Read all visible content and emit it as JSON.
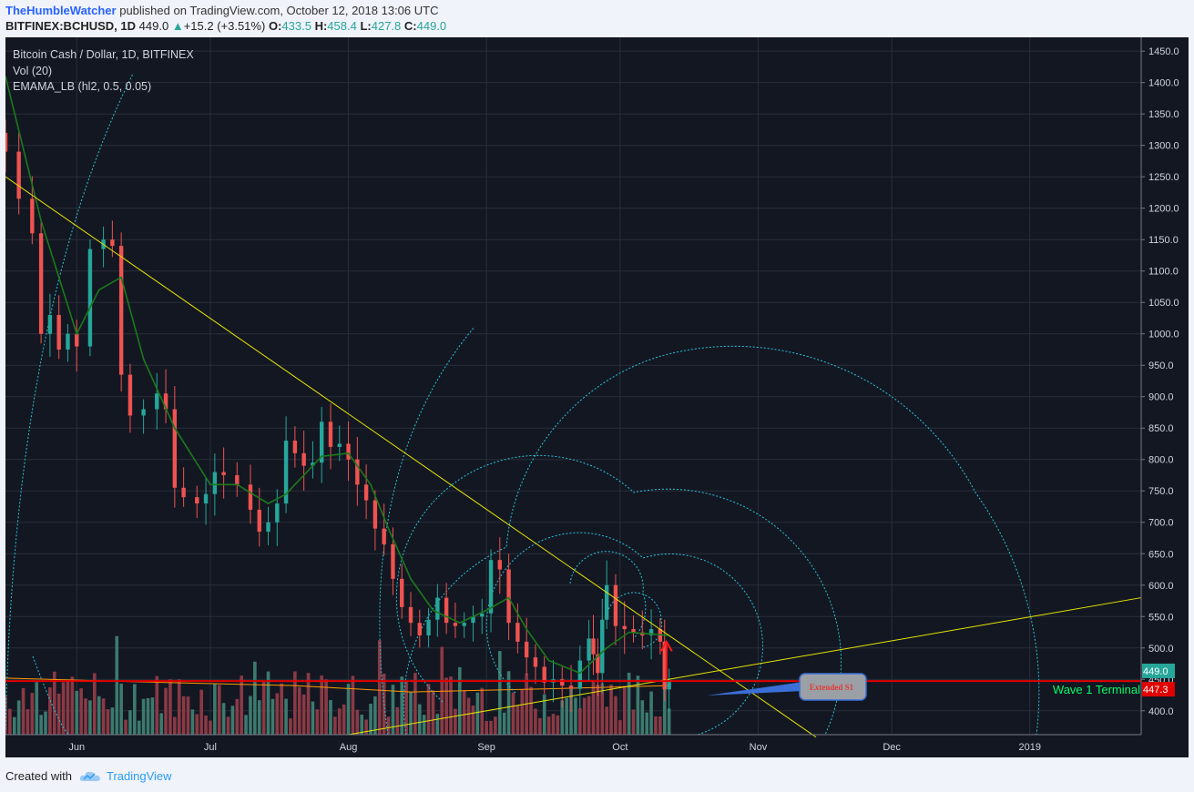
{
  "header": {
    "publisher": "TheHumbleWatcher",
    "published_text": "published on TradingView.com, October 12, 2018 13:06 UTC",
    "symbol": "BITFINEX:BCHUSD, 1D",
    "last": "449.0",
    "change_arrow": "▲",
    "change": "+15.2 (+3.51%)",
    "o_label": "O:",
    "o_value": "433.5",
    "h_label": "H:",
    "h_value": "458.4",
    "l_label": "L:",
    "l_value": "427.8",
    "c_label": "C:",
    "c_value": "449.0"
  },
  "legend": {
    "title": "Bitcoin Cash / Dollar, 1D, BITFINEX",
    "volume": "Vol (20)",
    "indicator": "EMAMA_LB (hl2, 0.5, 0.05)"
  },
  "annotations": {
    "wave_label": "Wave 1 Terminal",
    "callout": "Extended S1",
    "price_tag_last": "449.0",
    "price_tag_line": "447.3"
  },
  "footer": {
    "created_with": "Created with",
    "brand": "TradingView"
  },
  "colors": {
    "background": "#131722",
    "up_candle": "#26a69a",
    "down_candle": "#ef5350",
    "ema_line": "#1b7a1b",
    "trendline": "#e6e600",
    "fib_spiral": "#26c6da",
    "horizontal_line": "#e00000",
    "wave_label": "#00ff66"
  },
  "chart_data": {
    "type": "candlestick",
    "title": "Bitcoin Cash / Dollar, 1D, BITFINEX",
    "y_ticks": [
      400,
      450,
      500,
      550,
      600,
      650,
      700,
      750,
      800,
      850,
      900,
      950,
      1000,
      1050,
      1100,
      1150,
      1200,
      1250,
      1300,
      1350,
      1400,
      1450
    ],
    "ylim": [
      362,
      1472
    ],
    "x_ticks": [
      "Jun",
      "Jul",
      "Aug",
      "Sep",
      "Oct",
      "Nov",
      "Dec",
      "2019"
    ],
    "x_tick_dates": [
      "2018-06-01",
      "2018-07-01",
      "2018-08-01",
      "2018-09-01",
      "2018-10-01",
      "2018-11-01",
      "2018-12-01",
      "2019-01-01"
    ],
    "date_range": [
      "2018-05-16",
      "2019-01-26"
    ],
    "close_series": [
      {
        "date": "2018-05-16",
        "close": 1290
      },
      {
        "date": "2018-05-19",
        "close": 1215
      },
      {
        "date": "2018-05-22",
        "close": 1160
      },
      {
        "date": "2018-05-24",
        "close": 1000
      },
      {
        "date": "2018-05-26",
        "close": 1030
      },
      {
        "date": "2018-05-28",
        "close": 975
      },
      {
        "date": "2018-05-30",
        "close": 1000
      },
      {
        "date": "2018-06-01",
        "close": 980
      },
      {
        "date": "2018-06-04",
        "close": 1135
      },
      {
        "date": "2018-06-07",
        "close": 1150
      },
      {
        "date": "2018-06-09",
        "close": 1140
      },
      {
        "date": "2018-06-11",
        "close": 935
      },
      {
        "date": "2018-06-13",
        "close": 870
      },
      {
        "date": "2018-06-16",
        "close": 880
      },
      {
        "date": "2018-06-19",
        "close": 905
      },
      {
        "date": "2018-06-21",
        "close": 880
      },
      {
        "date": "2018-06-23",
        "close": 755
      },
      {
        "date": "2018-06-25",
        "close": 740
      },
      {
        "date": "2018-06-28",
        "close": 730
      },
      {
        "date": "2018-06-30",
        "close": 745
      },
      {
        "date": "2018-07-02",
        "close": 780
      },
      {
        "date": "2018-07-04",
        "close": 775
      },
      {
        "date": "2018-07-07",
        "close": 760
      },
      {
        "date": "2018-07-10",
        "close": 720
      },
      {
        "date": "2018-07-12",
        "close": 685
      },
      {
        "date": "2018-07-14",
        "close": 700
      },
      {
        "date": "2018-07-16",
        "close": 730
      },
      {
        "date": "2018-07-18",
        "close": 830
      },
      {
        "date": "2018-07-20",
        "close": 810
      },
      {
        "date": "2018-07-22",
        "close": 790
      },
      {
        "date": "2018-07-24",
        "close": 795
      },
      {
        "date": "2018-07-26",
        "close": 860
      },
      {
        "date": "2018-07-28",
        "close": 820
      },
      {
        "date": "2018-07-30",
        "close": 825
      },
      {
        "date": "2018-08-01",
        "close": 800
      },
      {
        "date": "2018-08-03",
        "close": 760
      },
      {
        "date": "2018-08-05",
        "close": 735
      },
      {
        "date": "2018-08-07",
        "close": 690
      },
      {
        "date": "2018-08-09",
        "close": 665
      },
      {
        "date": "2018-08-11",
        "close": 610
      },
      {
        "date": "2018-08-13",
        "close": 565
      },
      {
        "date": "2018-08-15",
        "close": 540
      },
      {
        "date": "2018-08-17",
        "close": 520
      },
      {
        "date": "2018-08-19",
        "close": 545
      },
      {
        "date": "2018-08-21",
        "close": 580
      },
      {
        "date": "2018-08-23",
        "close": 540
      },
      {
        "date": "2018-08-25",
        "close": 535
      },
      {
        "date": "2018-08-27",
        "close": 540
      },
      {
        "date": "2018-08-29",
        "close": 550
      },
      {
        "date": "2018-08-31",
        "close": 555
      },
      {
        "date": "2018-09-02",
        "close": 640
      },
      {
        "date": "2018-09-04",
        "close": 625
      },
      {
        "date": "2018-09-06",
        "close": 540
      },
      {
        "date": "2018-09-08",
        "close": 510
      },
      {
        "date": "2018-09-10",
        "close": 485
      },
      {
        "date": "2018-09-12",
        "close": 470
      },
      {
        "date": "2018-09-14",
        "close": 445
      },
      {
        "date": "2018-09-16",
        "close": 450
      },
      {
        "date": "2018-09-18",
        "close": 440
      },
      {
        "date": "2018-09-20",
        "close": 435
      },
      {
        "date": "2018-09-22",
        "close": 480
      },
      {
        "date": "2018-09-24",
        "close": 515
      },
      {
        "date": "2018-09-25",
        "close": 490
      },
      {
        "date": "2018-09-26",
        "close": 460
      },
      {
        "date": "2018-09-27",
        "close": 545
      },
      {
        "date": "2018-09-28",
        "close": 600
      },
      {
        "date": "2018-09-30",
        "close": 535
      },
      {
        "date": "2018-10-02",
        "close": 530
      },
      {
        "date": "2018-10-04",
        "close": 525
      },
      {
        "date": "2018-10-06",
        "close": 520
      },
      {
        "date": "2018-10-08",
        "close": 530
      },
      {
        "date": "2018-10-10",
        "close": 510
      },
      {
        "date": "2018-10-11",
        "close": 434
      },
      {
        "date": "2018-10-12",
        "close": 449
      }
    ],
    "ema": [
      {
        "date": "2018-05-16",
        "value": 1410
      },
      {
        "date": "2018-05-24",
        "value": 1180
      },
      {
        "date": "2018-06-01",
        "value": 1000
      },
      {
        "date": "2018-06-06",
        "value": 1070
      },
      {
        "date": "2018-06-11",
        "value": 1090
      },
      {
        "date": "2018-06-16",
        "value": 960
      },
      {
        "date": "2018-06-23",
        "value": 850
      },
      {
        "date": "2018-07-01",
        "value": 760
      },
      {
        "date": "2018-07-07",
        "value": 760
      },
      {
        "date": "2018-07-14",
        "value": 730
      },
      {
        "date": "2018-07-18",
        "value": 745
      },
      {
        "date": "2018-07-26",
        "value": 805
      },
      {
        "date": "2018-08-01",
        "value": 810
      },
      {
        "date": "2018-08-06",
        "value": 760
      },
      {
        "date": "2018-08-10",
        "value": 690
      },
      {
        "date": "2018-08-15",
        "value": 610
      },
      {
        "date": "2018-08-20",
        "value": 560
      },
      {
        "date": "2018-08-26",
        "value": 540
      },
      {
        "date": "2018-09-01",
        "value": 560
      },
      {
        "date": "2018-09-06",
        "value": 580
      },
      {
        "date": "2018-09-10",
        "value": 530
      },
      {
        "date": "2018-09-15",
        "value": 480
      },
      {
        "date": "2018-09-22",
        "value": 460
      },
      {
        "date": "2018-09-28",
        "value": 500
      },
      {
        "date": "2018-10-03",
        "value": 525
      },
      {
        "date": "2018-10-12",
        "value": 520
      }
    ],
    "volume_ma_level": 450,
    "horizontal_line": 447.3,
    "last_price": 449.0,
    "resistance_trendline": [
      {
        "date": "2018-05-16",
        "price": 1250
      },
      {
        "date": "2018-11-14",
        "price": 358
      }
    ],
    "support_trendline": [
      {
        "date": "2018-08-01",
        "price": 362
      },
      {
        "date": "2019-01-26",
        "price": 580
      }
    ],
    "grid": true
  }
}
